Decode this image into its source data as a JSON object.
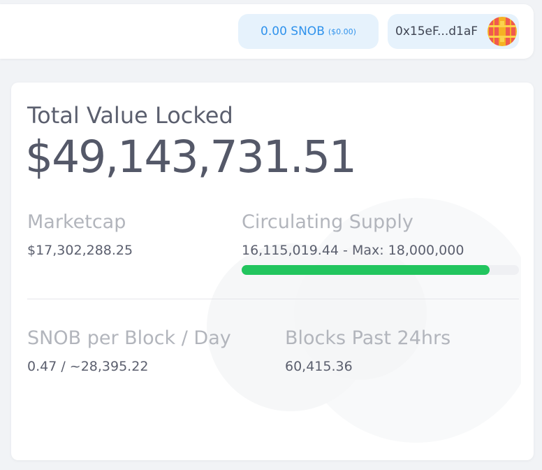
{
  "header": {
    "balance": {
      "amount": "0.00 SNOB",
      "usd": "($0.00)"
    },
    "wallet": {
      "address": "0x15eF...d1aF",
      "avatar_icon": "identicon-avatar"
    }
  },
  "stats": {
    "tvl": {
      "label": "Total Value Locked",
      "value": "$49,143,731.51"
    },
    "marketcap": {
      "label": "Marketcap",
      "value": "$17,302,288.25"
    },
    "circulating_supply": {
      "label": "Circulating Supply",
      "value": "16,115,019.44 - Max: 18,000,000",
      "progress_fraction": 0.8953
    },
    "snob_per_block": {
      "label": "SNOB per Block / Day",
      "value": "0.47 / ~28,395.22"
    },
    "blocks_24h": {
      "label": "Blocks Past 24hrs",
      "value": "60,415.36"
    }
  },
  "colors": {
    "accent_blue": "#2f92ec",
    "progress_green": "#22c55e",
    "text_dark": "#545868",
    "text_muted": "#b2b5bc"
  }
}
